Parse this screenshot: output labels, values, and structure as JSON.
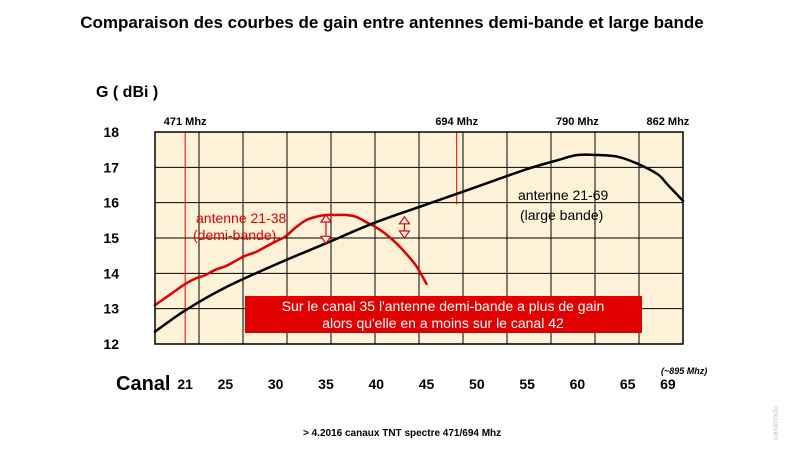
{
  "title": "Comparaison des courbes de gain entre antennes demi-bande et large bande",
  "footer_note": "> 4.2016 canaux TNT spectre 471/694 Mhz",
  "credit": "casimodo",
  "colors": {
    "accent_red": "#e00000",
    "plot_bg": "#fdf2d8",
    "banner_bg": "#e00000"
  },
  "chart_data": {
    "type": "line",
    "ylabel": "G ( dBi )",
    "xlabel": "Canal",
    "x_ticks": [
      "21",
      "25",
      "30",
      "35",
      "40",
      "45",
      "50",
      "55",
      "60",
      "65",
      "69"
    ],
    "y_ticks": [
      "12",
      "13",
      "14",
      "15",
      "16",
      "17",
      "18"
    ],
    "xlim": [
      18,
      70.5
    ],
    "ylim": [
      12,
      18
    ],
    "grid": true,
    "freq_markers": [
      {
        "label": "471 Mhz",
        "x": 21
      },
      {
        "label": "694 Mhz",
        "x": 48
      },
      {
        "label": "790 Mhz",
        "x": 60
      },
      {
        "label": "862 Mhz",
        "x": 69
      }
    ],
    "upper_note": "(~895 Mhz)",
    "series": [
      {
        "name": "antenne 21-38",
        "name_line2": "(demi-bande)",
        "color": "#e00000",
        "x": [
          18,
          19,
          20,
          21,
          22,
          23,
          24,
          25,
          26,
          27,
          28,
          29,
          30,
          31,
          32,
          33,
          34,
          35,
          36,
          37,
          38,
          39,
          40,
          41,
          42,
          43,
          44,
          45
        ],
        "y": [
          13.1,
          13.3,
          13.5,
          13.7,
          13.85,
          13.95,
          14.1,
          14.2,
          14.35,
          14.5,
          14.6,
          14.75,
          14.9,
          15.05,
          15.3,
          15.5,
          15.6,
          15.65,
          15.65,
          15.65,
          15.6,
          15.45,
          15.3,
          15.1,
          14.85,
          14.55,
          14.2,
          13.7
        ]
      },
      {
        "name": "antenne 21-69",
        "name_line2": "(large bande)",
        "color": "#000000",
        "x": [
          18,
          21,
          25,
          30,
          35,
          40,
          45,
          50,
          55,
          58,
          60,
          62,
          64,
          66,
          68,
          69,
          70.5
        ],
        "y": [
          12.35,
          12.95,
          13.6,
          14.25,
          14.85,
          15.45,
          15.95,
          16.45,
          16.95,
          17.2,
          17.35,
          17.35,
          17.3,
          17.1,
          16.8,
          16.5,
          16.05
        ]
      }
    ],
    "annotations": [
      {
        "type": "double-arrow",
        "x": 35,
        "y_from": 14.85,
        "y_to": 15.65
      },
      {
        "type": "double-arrow",
        "x": 42.8,
        "y_from": 15.0,
        "y_to": 15.6
      }
    ],
    "banner": {
      "line1": "Sur le canal 35 l'antenne demi-bande a plus de gain",
      "line2": "alors qu'elle en a moins sur le canal 42"
    }
  }
}
